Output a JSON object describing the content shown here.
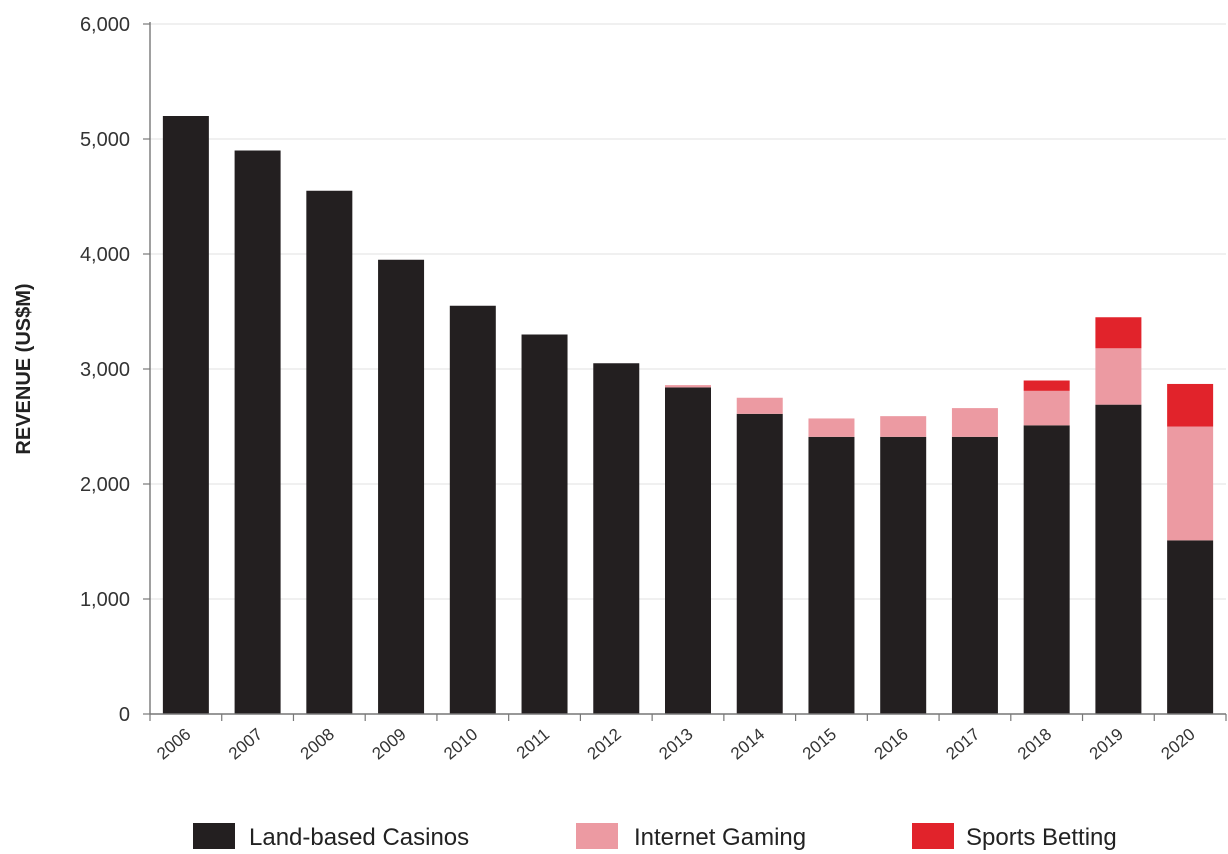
{
  "chart_data": {
    "type": "bar",
    "stacked": true,
    "title": "",
    "xlabel": "",
    "ylabel": "REVENUE (US$M)",
    "ylim": [
      0,
      6000
    ],
    "yticks": [
      0,
      1000,
      2000,
      3000,
      4000,
      5000,
      6000
    ],
    "ytick_labels": [
      "0",
      "1,000",
      "2,000",
      "3,000",
      "4,000",
      "5,000",
      "6,000"
    ],
    "grid": true,
    "legend_position": "bottom",
    "categories": [
      "2006",
      "2007",
      "2008",
      "2009",
      "2010",
      "2011",
      "2012",
      "2013",
      "2014",
      "2015",
      "2016",
      "2017",
      "2018",
      "2019",
      "2020"
    ],
    "series": [
      {
        "name": "Land-based Casinos",
        "color": "#231f20",
        "values": [
          5200,
          4900,
          4550,
          3950,
          3550,
          3300,
          3050,
          2840,
          2610,
          2410,
          2410,
          2410,
          2510,
          2690,
          1510
        ]
      },
      {
        "name": "Internet Gaming",
        "color": "#ec9aa2",
        "values": [
          0,
          0,
          0,
          0,
          0,
          0,
          0,
          20,
          140,
          160,
          180,
          250,
          300,
          490,
          990
        ]
      },
      {
        "name": "Sports Betting",
        "color": "#e1232b",
        "values": [
          0,
          0,
          0,
          0,
          0,
          0,
          0,
          0,
          0,
          0,
          0,
          0,
          90,
          270,
          370
        ]
      }
    ]
  }
}
